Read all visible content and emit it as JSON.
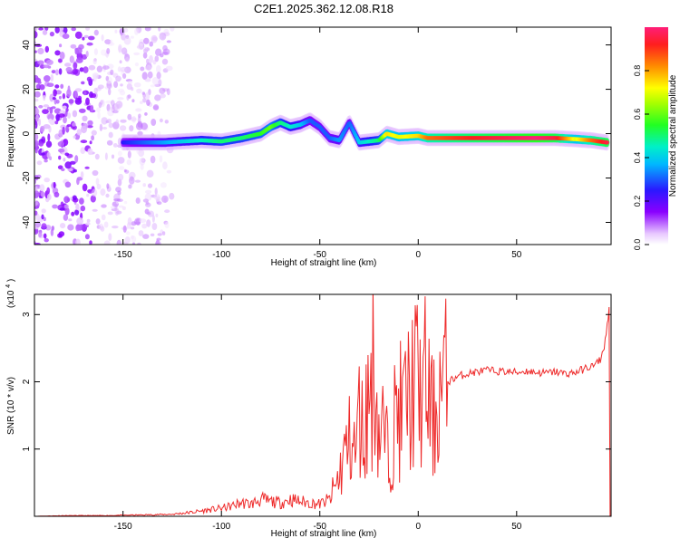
{
  "title": "C2E1.2025.362.12.08.R18",
  "colors": {
    "snr_line": "#ee2a2a",
    "axis": "#000000"
  },
  "chart_data": [
    {
      "type": "heatmap",
      "title": "C2E1.2025.362.12.08.R18",
      "xlabel": "Height of straight line (km)",
      "ylabel": "Frequency (Hz)",
      "xlim": [
        -195,
        98
      ],
      "ylim": [
        -50,
        48
      ],
      "xticks": [
        -150,
        -100,
        -50,
        0,
        50
      ],
      "yticks": [
        -40,
        -20,
        0,
        20,
        40
      ],
      "colorbar": {
        "label": "Normalized spectral amplitude",
        "range": [
          0.0,
          1.0
        ],
        "ticks": [
          "0.0",
          "0.2",
          "0.4",
          "0.6",
          "0.8"
        ],
        "tick_values": [
          0.0,
          0.2,
          0.4,
          0.6,
          0.8
        ]
      },
      "ridge": [
        {
          "x": -150,
          "f": -4,
          "a": 0.25
        },
        {
          "x": -140,
          "f": -4,
          "a": 0.3
        },
        {
          "x": -130,
          "f": -4,
          "a": 0.35
        },
        {
          "x": -120,
          "f": -3.5,
          "a": 0.4
        },
        {
          "x": -110,
          "f": -3,
          "a": 0.45
        },
        {
          "x": -100,
          "f": -3.5,
          "a": 0.5
        },
        {
          "x": -90,
          "f": -2,
          "a": 0.5
        },
        {
          "x": -80,
          "f": 0,
          "a": 0.55
        },
        {
          "x": -75,
          "f": 3,
          "a": 0.6
        },
        {
          "x": -70,
          "f": 5,
          "a": 0.5
        },
        {
          "x": -65,
          "f": 3,
          "a": 0.45
        },
        {
          "x": -60,
          "f": 4,
          "a": 0.4
        },
        {
          "x": -55,
          "f": 6,
          "a": 0.3
        },
        {
          "x": -50,
          "f": 3,
          "a": 0.3
        },
        {
          "x": -45,
          "f": -2,
          "a": 0.3
        },
        {
          "x": -40,
          "f": -3,
          "a": 0.35
        },
        {
          "x": -35,
          "f": 5,
          "a": 0.3
        },
        {
          "x": -30,
          "f": -4,
          "a": 0.4
        },
        {
          "x": -20,
          "f": -3,
          "a": 0.5
        },
        {
          "x": -16,
          "f": 0,
          "a": 0.75
        },
        {
          "x": -10,
          "f": -1.5,
          "a": 0.7
        },
        {
          "x": 0,
          "f": -1,
          "a": 0.75
        },
        {
          "x": 5,
          "f": -2,
          "a": 0.85
        },
        {
          "x": 20,
          "f": -2,
          "a": 0.9
        },
        {
          "x": 40,
          "f": -2,
          "a": 0.95
        },
        {
          "x": 60,
          "f": -2,
          "a": 1.0
        },
        {
          "x": 70,
          "f": -2,
          "a": 0.95
        },
        {
          "x": 80,
          "f": -2.5,
          "a": 0.7
        },
        {
          "x": 88,
          "f": -3,
          "a": 0.85
        },
        {
          "x": 96,
          "f": -4,
          "a": 0.95
        }
      ]
    },
    {
      "type": "line",
      "xlabel": "Height of straight line (km)",
      "ylabel": "SNR (10 * v/v)",
      "multiplier": "(x10",
      "multiplier_exp": "4",
      "multiplier_close": ")",
      "xlim": [
        -195,
        98
      ],
      "ylim": [
        0,
        3.3
      ],
      "xticks": [
        -150,
        -100,
        -50,
        0,
        50
      ],
      "yticks": [
        1,
        2,
        3
      ],
      "x": [
        -195,
        -180,
        -160,
        -140,
        -125,
        -115,
        -105,
        -100,
        -95,
        -90,
        -85,
        -80,
        -75,
        -70,
        -65,
        -60,
        -55,
        -50,
        -45,
        -42,
        -40,
        -38,
        -36,
        -34,
        -32,
        -30,
        -28,
        -26,
        -24,
        -22,
        -20,
        -18,
        -16,
        -14,
        -12,
        -10,
        -8,
        -6,
        -4,
        -2,
        0,
        2,
        4,
        6,
        8,
        10,
        12,
        15,
        20,
        25,
        30,
        35,
        40,
        45,
        50,
        55,
        60,
        65,
        70,
        75,
        80,
        85,
        90,
        93,
        95,
        97
      ],
      "y": [
        0.0,
        0.01,
        0.01,
        0.02,
        0.03,
        0.06,
        0.1,
        0.12,
        0.15,
        0.2,
        0.18,
        0.25,
        0.22,
        0.2,
        0.25,
        0.22,
        0.2,
        0.18,
        0.25,
        0.45,
        0.6,
        0.9,
        1.0,
        1.2,
        0.9,
        1.5,
        1.2,
        1.6,
        2.0,
        2.3,
        1.2,
        1.3,
        1.0,
        1.1,
        1.4,
        1.6,
        1.5,
        1.8,
        1.7,
        2.1,
        1.9,
        1.8,
        2.0,
        1.6,
        1.4,
        1.8,
        1.9,
        2.0,
        2.08,
        2.12,
        2.15,
        2.17,
        2.16,
        2.15,
        2.14,
        2.16,
        2.14,
        2.13,
        2.15,
        2.12,
        2.14,
        2.2,
        2.25,
        2.35,
        2.6,
        3.1
      ]
    }
  ]
}
